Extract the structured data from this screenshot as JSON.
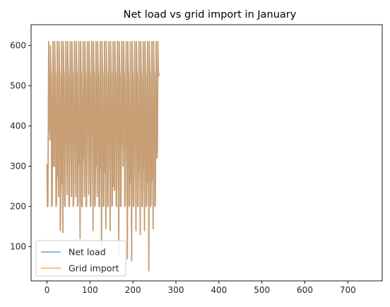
{
  "chart_data": {
    "type": "line",
    "title": "Net load vs grid import in January",
    "xlabel": "",
    "ylabel": "",
    "xlim": [
      -37,
      780
    ],
    "ylim": [
      15,
      652
    ],
    "xticks": [
      0,
      100,
      200,
      300,
      400,
      500,
      600,
      700
    ],
    "yticks": [
      100,
      200,
      300,
      400,
      500,
      600
    ],
    "grid": false,
    "legend_position": "lower-left",
    "x_step": 1,
    "series": [
      {
        "name": "Net load",
        "color": "#1f77b4",
        "alpha": 0.5,
        "values": [
          305,
          200,
          200,
          380,
          610,
          390,
          480,
          365,
          600,
          540,
          525,
          200,
          205,
          360,
          610,
          300,
          395,
          300,
          610,
          540,
          525,
          200,
          205,
          345,
          610,
          275,
          395,
          225,
          610,
          540,
          525,
          140,
          205,
          340,
          610,
          255,
          520,
          135,
          610,
          540,
          525,
          205,
          200,
          350,
          610,
          380,
          395,
          230,
          610,
          540,
          525,
          200,
          200,
          395,
          610,
          395,
          380,
          225,
          610,
          540,
          525,
          200,
          205,
          360,
          610,
          380,
          355,
          225,
          610,
          540,
          525,
          200,
          205,
          375,
          610,
          305,
          395,
          120,
          610,
          540,
          525,
          200,
          200,
          365,
          610,
          320,
          490,
          225,
          610,
          540,
          525,
          200,
          200,
          395,
          610,
          390,
          440,
          230,
          610,
          540,
          525,
          200,
          205,
          380,
          610,
          380,
          470,
          140,
          610,
          540,
          525,
          200,
          205,
          325,
          610,
          300,
          510,
          225,
          610,
          540,
          525,
          200,
          200,
          365,
          610,
          295,
          335,
          100,
          610,
          540,
          525,
          200,
          205,
          365,
          610,
          285,
          420,
          145,
          610,
          540,
          525,
          200,
          200,
          375,
          610,
          360,
          390,
          140,
          610,
          540,
          525,
          200,
          205,
          350,
          610,
          250,
          400,
          240,
          610,
          540,
          525,
          205,
          200,
          350,
          610,
          360,
          440,
          80,
          610,
          540,
          525,
          200,
          200,
          370,
          610,
          355,
          480,
          300,
          610,
          540,
          525,
          200,
          205,
          370,
          610,
          360,
          395,
          70,
          610,
          540,
          525,
          200,
          205,
          325,
          610,
          260,
          390,
          65,
          610,
          540,
          525,
          200,
          205,
          345,
          610,
          370,
          445,
          140,
          610,
          540,
          525,
          200,
          200,
          355,
          610,
          290,
          395,
          130,
          610,
          540,
          525,
          200,
          200,
          370,
          610,
          300,
          290,
          140,
          610,
          540,
          525,
          200,
          205,
          350,
          610,
          260,
          390,
          40,
          610,
          540,
          525,
          200,
          205,
          355,
          610,
          265,
          425,
          145,
          610,
          540,
          525,
          200,
          205,
          370,
          610,
          380,
          320,
          345,
          610,
          540,
          525,
          530
        ]
      },
      {
        "name": "Grid import",
        "color": "#ff7f0e",
        "alpha": 0.5,
        "values": [
          305,
          200,
          200,
          380,
          610,
          390,
          480,
          365,
          600,
          540,
          525,
          200,
          205,
          360,
          610,
          300,
          395,
          300,
          610,
          540,
          525,
          200,
          205,
          345,
          610,
          275,
          395,
          225,
          610,
          540,
          525,
          140,
          205,
          340,
          610,
          255,
          520,
          135,
          610,
          540,
          525,
          205,
          200,
          350,
          610,
          380,
          395,
          230,
          610,
          540,
          525,
          200,
          200,
          395,
          610,
          395,
          380,
          225,
          610,
          540,
          525,
          200,
          205,
          360,
          610,
          380,
          355,
          225,
          610,
          540,
          525,
          200,
          205,
          375,
          610,
          305,
          395,
          120,
          610,
          540,
          525,
          200,
          200,
          365,
          610,
          320,
          490,
          225,
          610,
          540,
          525,
          200,
          200,
          395,
          610,
          390,
          440,
          230,
          610,
          540,
          525,
          200,
          205,
          380,
          610,
          380,
          470,
          140,
          610,
          540,
          525,
          200,
          205,
          325,
          610,
          300,
          510,
          225,
          610,
          540,
          525,
          200,
          200,
          365,
          610,
          295,
          335,
          100,
          610,
          540,
          525,
          200,
          205,
          365,
          610,
          285,
          420,
          145,
          610,
          540,
          525,
          200,
          200,
          375,
          610,
          360,
          390,
          140,
          610,
          540,
          525,
          200,
          205,
          350,
          610,
          250,
          400,
          240,
          610,
          540,
          525,
          205,
          200,
          350,
          610,
          360,
          440,
          80,
          610,
          540,
          525,
          200,
          200,
          370,
          610,
          355,
          480,
          300,
          610,
          540,
          525,
          200,
          205,
          370,
          610,
          360,
          395,
          70,
          610,
          540,
          525,
          200,
          205,
          325,
          610,
          260,
          390,
          65,
          610,
          540,
          525,
          200,
          205,
          345,
          610,
          370,
          445,
          140,
          610,
          540,
          525,
          200,
          200,
          355,
          610,
          290,
          395,
          130,
          610,
          540,
          525,
          200,
          200,
          370,
          610,
          300,
          290,
          140,
          610,
          540,
          525,
          200,
          205,
          350,
          610,
          260,
          390,
          40,
          610,
          540,
          525,
          200,
          205,
          355,
          610,
          265,
          425,
          145,
          610,
          540,
          525,
          200,
          205,
          370,
          610,
          380,
          320,
          345,
          610,
          540,
          525,
          530
        ]
      }
    ]
  }
}
